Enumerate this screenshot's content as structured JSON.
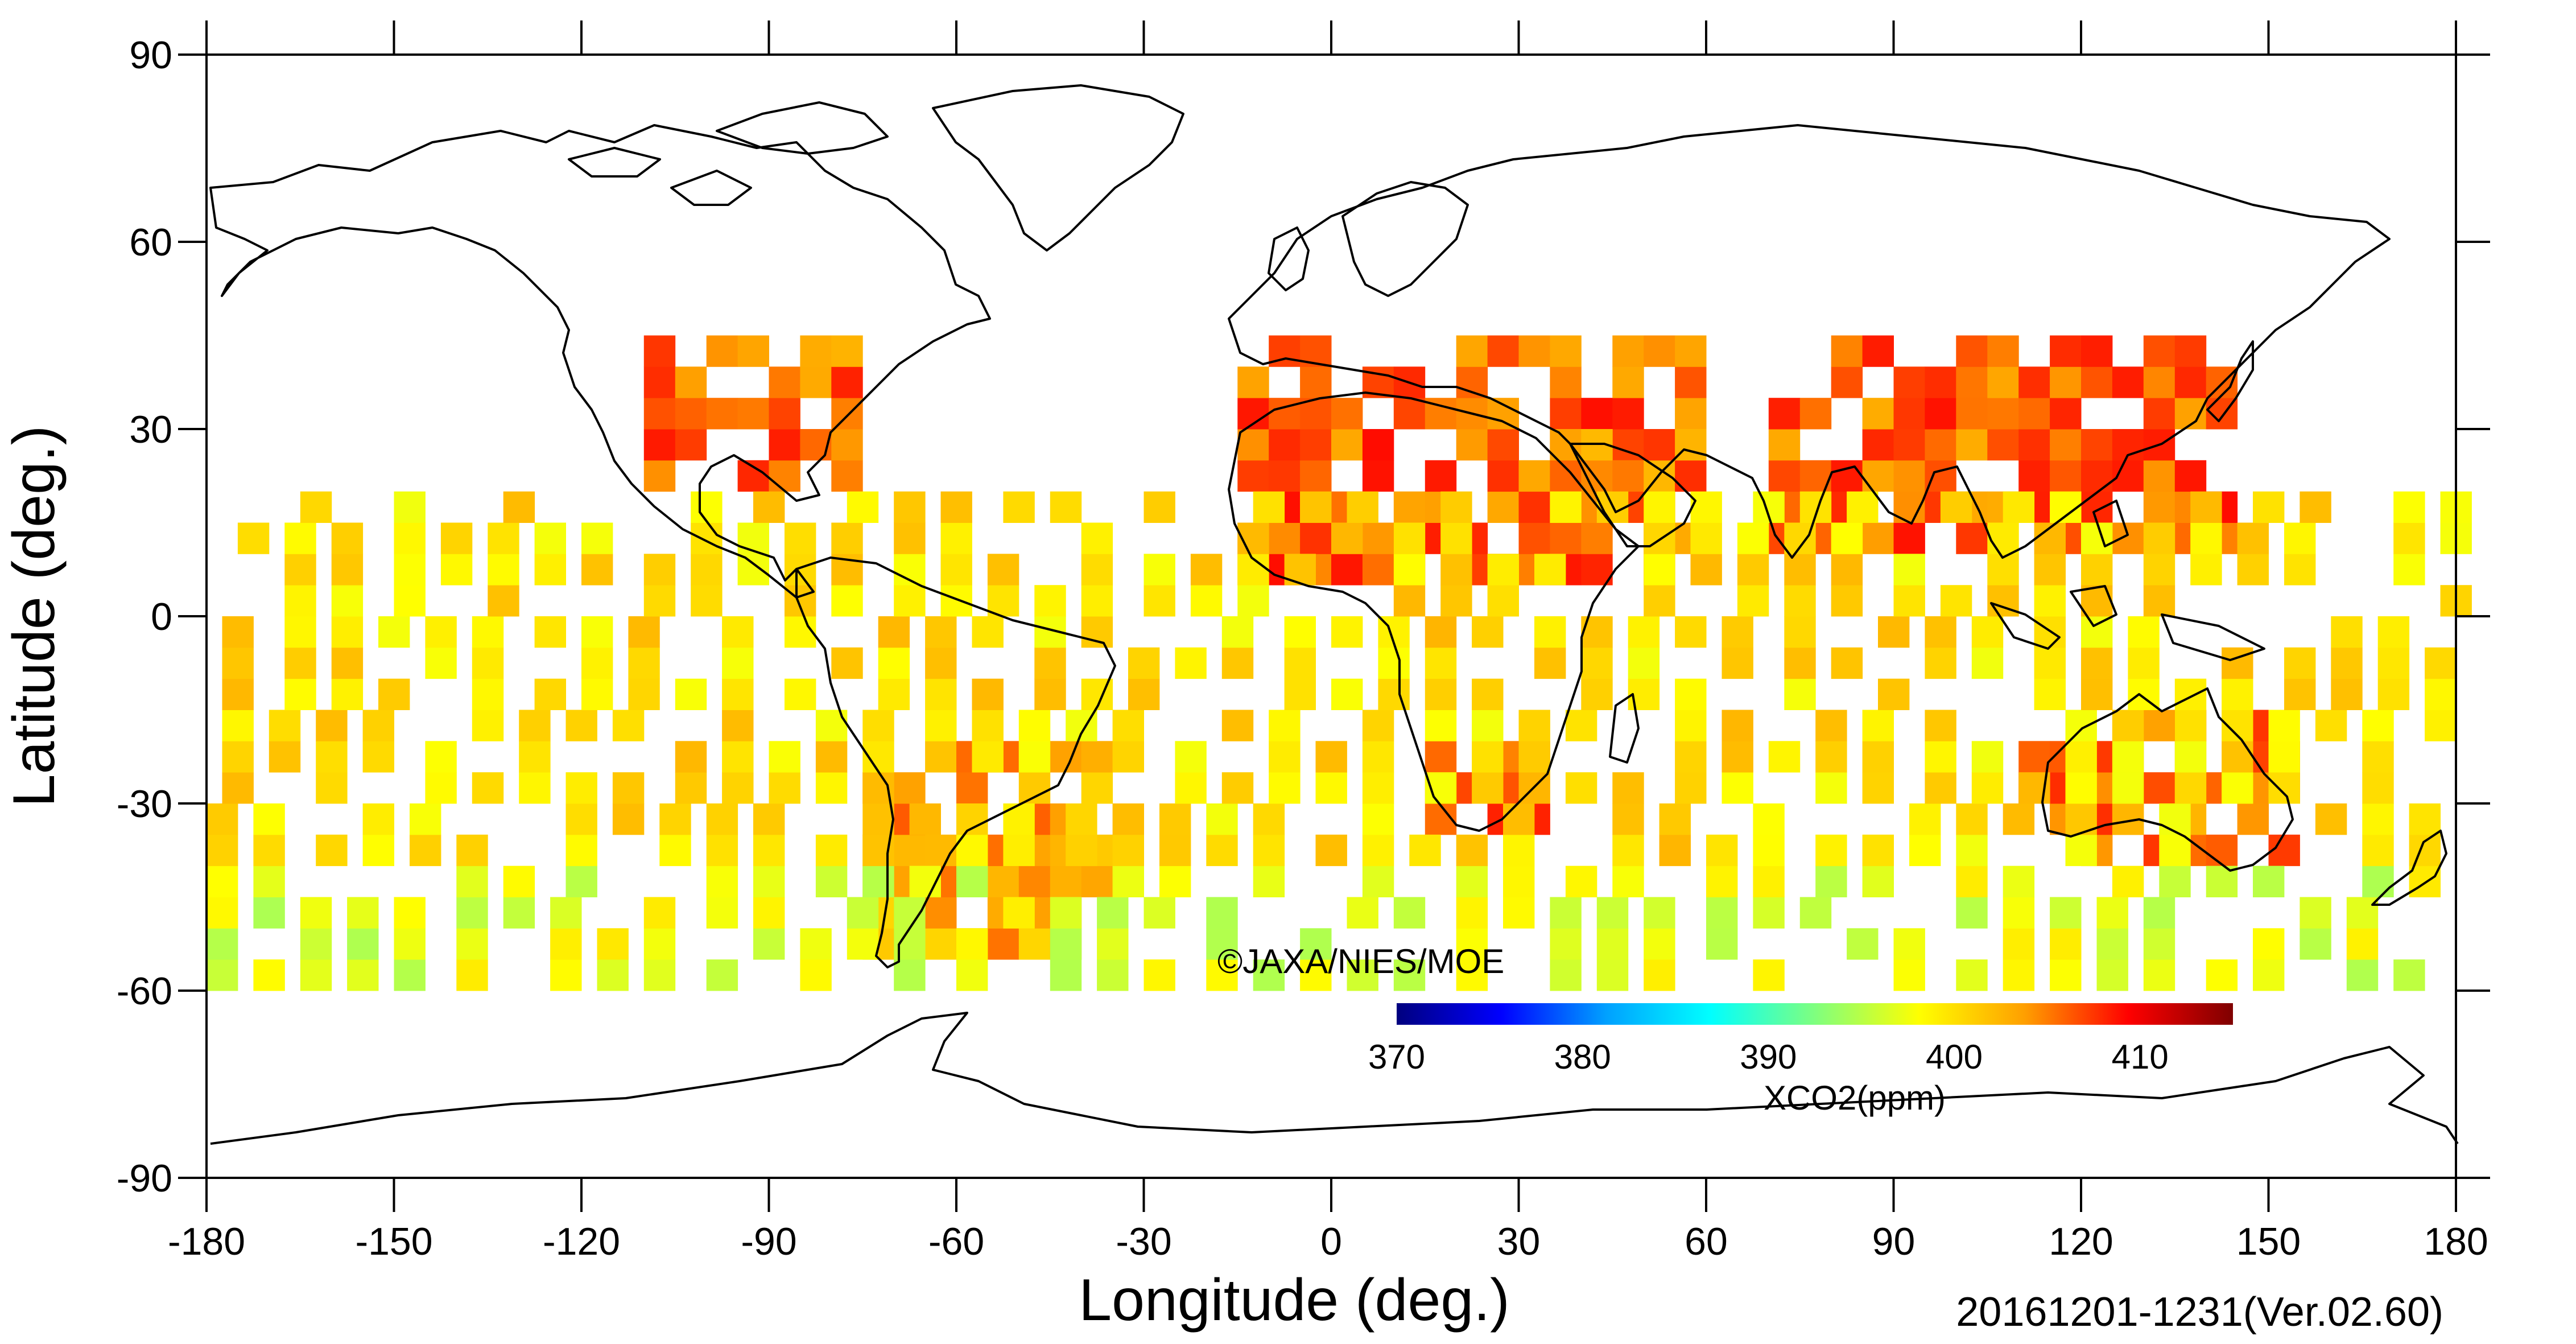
{
  "map": {
    "type": "map",
    "xlabel": "Longitude (deg.)",
    "ylabel": "Latitude (deg.)",
    "xlim": [
      -180,
      180
    ],
    "ylim": [
      -90,
      90
    ],
    "x_ticks": [
      -180,
      -150,
      -120,
      -90,
      -60,
      -30,
      0,
      30,
      60,
      90,
      120,
      150,
      180
    ],
    "y_ticks": [
      90,
      60,
      30,
      0,
      -30,
      -60,
      -90
    ],
    "grid_cell_deg": 5,
    "copyright": "©JAXA/NIES/MOE",
    "period_label": "20161201-1231(Ver.02.60)",
    "background_color": "#ffffff",
    "coastline_color": "#000000"
  },
  "colorbar": {
    "label": "XCO2(ppm)",
    "min": 370,
    "max": 415,
    "ticks": [
      370,
      380,
      390,
      400,
      410
    ],
    "colors": [
      "#00007f",
      "#0000ff",
      "#00a0ff",
      "#00ffff",
      "#7fff7f",
      "#ffff00",
      "#ffa000",
      "#ff0000",
      "#7f0000"
    ]
  },
  "chart_data": {
    "type": "heatmap",
    "xlabel": "Longitude (deg.)",
    "ylabel": "Latitude (deg.)",
    "xlim": [
      -180,
      180
    ],
    "ylim": [
      -90,
      90
    ],
    "value_label": "XCO2(ppm)",
    "value_range": [
      370,
      415
    ],
    "regions": [
      {
        "lon": [
          -110,
          -75
        ],
        "lat": [
          20,
          45
        ],
        "value": 405.5
      },
      {
        "lon": [
          -75,
          -35
        ],
        "lat": [
          -55,
          -20
        ],
        "value": 403.5
      },
      {
        "lon": [
          -15,
          60
        ],
        "lat": [
          5,
          45
        ],
        "value": 406
      },
      {
        "lon": [
          15,
          35
        ],
        "lat": [
          -35,
          -20
        ],
        "value": 407
      },
      {
        "lon": [
          35,
          60
        ],
        "lat": [
          15,
          30
        ],
        "value": 405
      },
      {
        "lon": [
          70,
          145
        ],
        "lat": [
          10,
          45
        ],
        "value": 406
      },
      {
        "lon": [
          110,
          155
        ],
        "lat": [
          -40,
          -15
        ],
        "value": 405
      },
      {
        "lon": [
          -180,
          180
        ],
        "lat": [
          -40,
          15
        ],
        "value": 400
      },
      {
        "lon": [
          -180,
          180
        ],
        "lat": [
          -60,
          -40
        ],
        "value": 397
      }
    ]
  }
}
